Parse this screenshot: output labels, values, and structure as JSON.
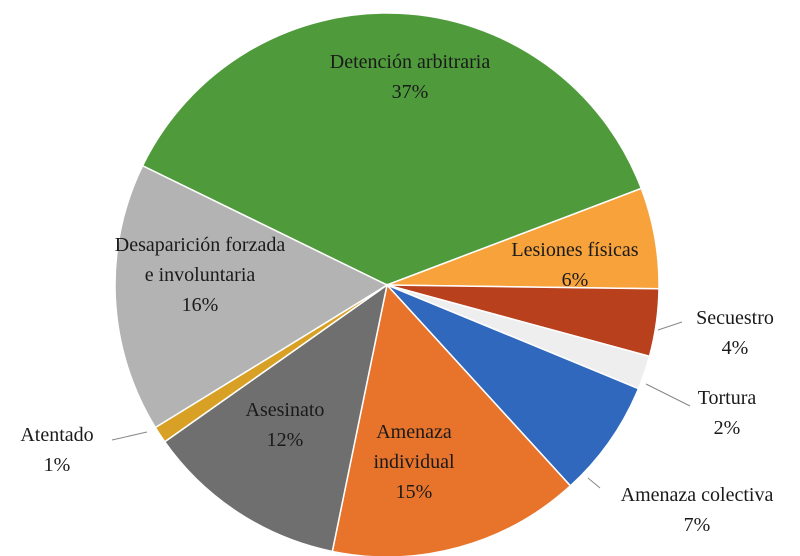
{
  "chart_data": {
    "type": "pie",
    "categories": [
      "Detención arbitraria",
      "Lesiones físicas",
      "Secuestro",
      "Tortura",
      "Amenaza colectiva",
      "Amenaza individual",
      "Asesinato",
      "Atentado",
      "Desaparición forzada e involuntaria"
    ],
    "values": [
      37,
      6,
      4,
      2,
      7,
      15,
      12,
      1,
      16
    ],
    "value_labels": [
      "37%",
      "6%",
      "4%",
      "2%",
      "7%",
      "15%",
      "12%",
      "1%",
      "16%"
    ],
    "colors": [
      "#4f9b3c",
      "#f7a23b",
      "#b8401c",
      "#eeeeee",
      "#2f68bd",
      "#e8742c",
      "#6f6f6f",
      "#d8a125",
      "#b3b3b3"
    ]
  }
}
